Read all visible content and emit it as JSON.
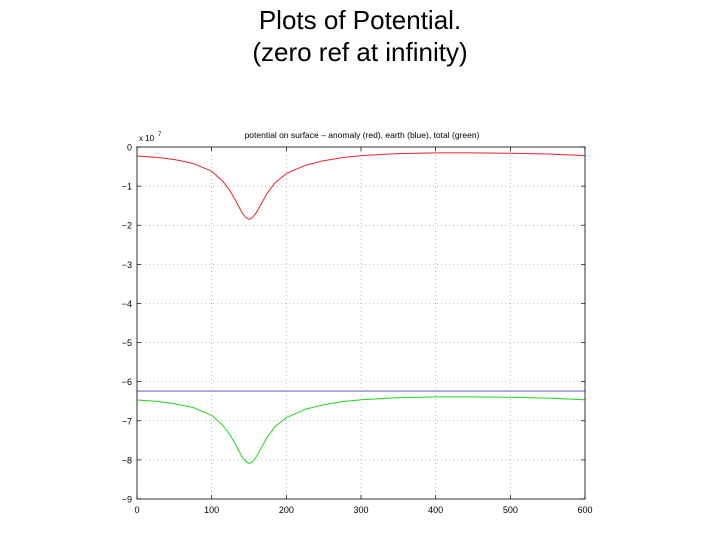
{
  "slide": {
    "title_line1": "Plots of Potential.",
    "title_line2": "(zero ref at infinity)"
  },
  "chart_data": {
    "type": "line",
    "title": "potential on surface – anomaly (red), earth (blue), total (green)",
    "xlabel": "",
    "ylabel": "",
    "y_multiplier_label": "x 10",
    "y_multiplier_exponent": "7",
    "xlim": [
      0,
      600
    ],
    "ylim": [
      -9,
      0
    ],
    "x_ticks": [
      0,
      100,
      200,
      300,
      400,
      500,
      600
    ],
    "y_ticks": [
      0,
      -1,
      -2,
      -3,
      -4,
      -5,
      -6,
      -7,
      -8,
      -9
    ],
    "y_tick_labels": [
      "0",
      "−1",
      "−2",
      "−3",
      "−4",
      "−5",
      "−6",
      "−7",
      "−8",
      "−9"
    ],
    "grid": true,
    "legend": "none",
    "x": [
      0,
      25,
      50,
      75,
      100,
      115,
      125,
      135,
      140,
      145,
      150,
      155,
      160,
      165,
      175,
      185,
      200,
      225,
      250,
      275,
      300,
      350,
      400,
      450,
      500,
      550,
      600
    ],
    "series": [
      {
        "color": "#e8242a",
        "values": [
          -0.23,
          -0.26,
          -0.32,
          -0.42,
          -0.62,
          -0.88,
          -1.13,
          -1.47,
          -1.66,
          -1.79,
          -1.85,
          -1.8,
          -1.67,
          -1.5,
          -1.16,
          -0.91,
          -0.68,
          -0.47,
          -0.35,
          -0.27,
          -0.22,
          -0.17,
          -0.15,
          -0.15,
          -0.16,
          -0.18,
          -0.22
        ]
      },
      {
        "color": "#8a8ad6",
        "values": [
          -6.24,
          -6.24,
          -6.24,
          -6.24,
          -6.24,
          -6.24,
          -6.24,
          -6.24,
          -6.24,
          -6.24,
          -6.24,
          -6.24,
          -6.24,
          -6.24,
          -6.24,
          -6.24,
          -6.24,
          -6.24,
          -6.24,
          -6.24,
          -6.24,
          -6.24,
          -6.24,
          -6.24,
          -6.24,
          -6.24,
          -6.24
        ]
      },
      {
        "color": "#1fd81f",
        "values": [
          -6.47,
          -6.5,
          -6.56,
          -6.66,
          -6.86,
          -7.12,
          -7.37,
          -7.71,
          -7.9,
          -8.03,
          -8.09,
          -8.04,
          -7.91,
          -7.74,
          -7.4,
          -7.15,
          -6.92,
          -6.71,
          -6.59,
          -6.51,
          -6.46,
          -6.41,
          -6.39,
          -6.39,
          -6.4,
          -6.42,
          -6.46
        ]
      }
    ]
  }
}
